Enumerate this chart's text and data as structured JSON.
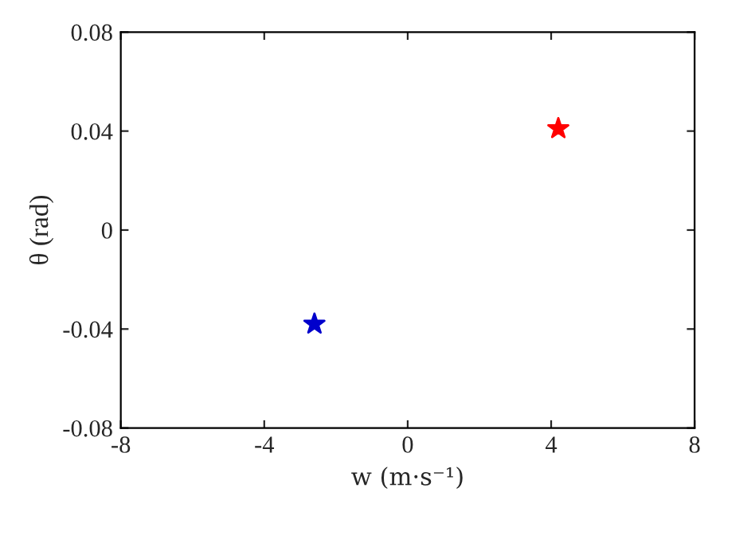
{
  "chart_data": {
    "type": "scatter",
    "xlabel": "w (m·s⁻¹)",
    "ylabel": "θ (rad)",
    "series": [
      {
        "color": "#ff0000",
        "x": [
          4.2
        ],
        "values": [
          0.041
        ]
      },
      {
        "color": "#0000cc",
        "x": [
          -2.6
        ],
        "values": [
          -0.038
        ]
      }
    ],
    "marker": "star",
    "xlim": [
      -8,
      8
    ],
    "xticks": [
      -8,
      -4,
      0,
      4,
      8
    ],
    "ylim": [
      -0.08,
      0.08
    ],
    "yticks": [
      -0.08,
      -0.04,
      0,
      0.04,
      0.08
    ],
    "grid": false,
    "legend": false
  }
}
